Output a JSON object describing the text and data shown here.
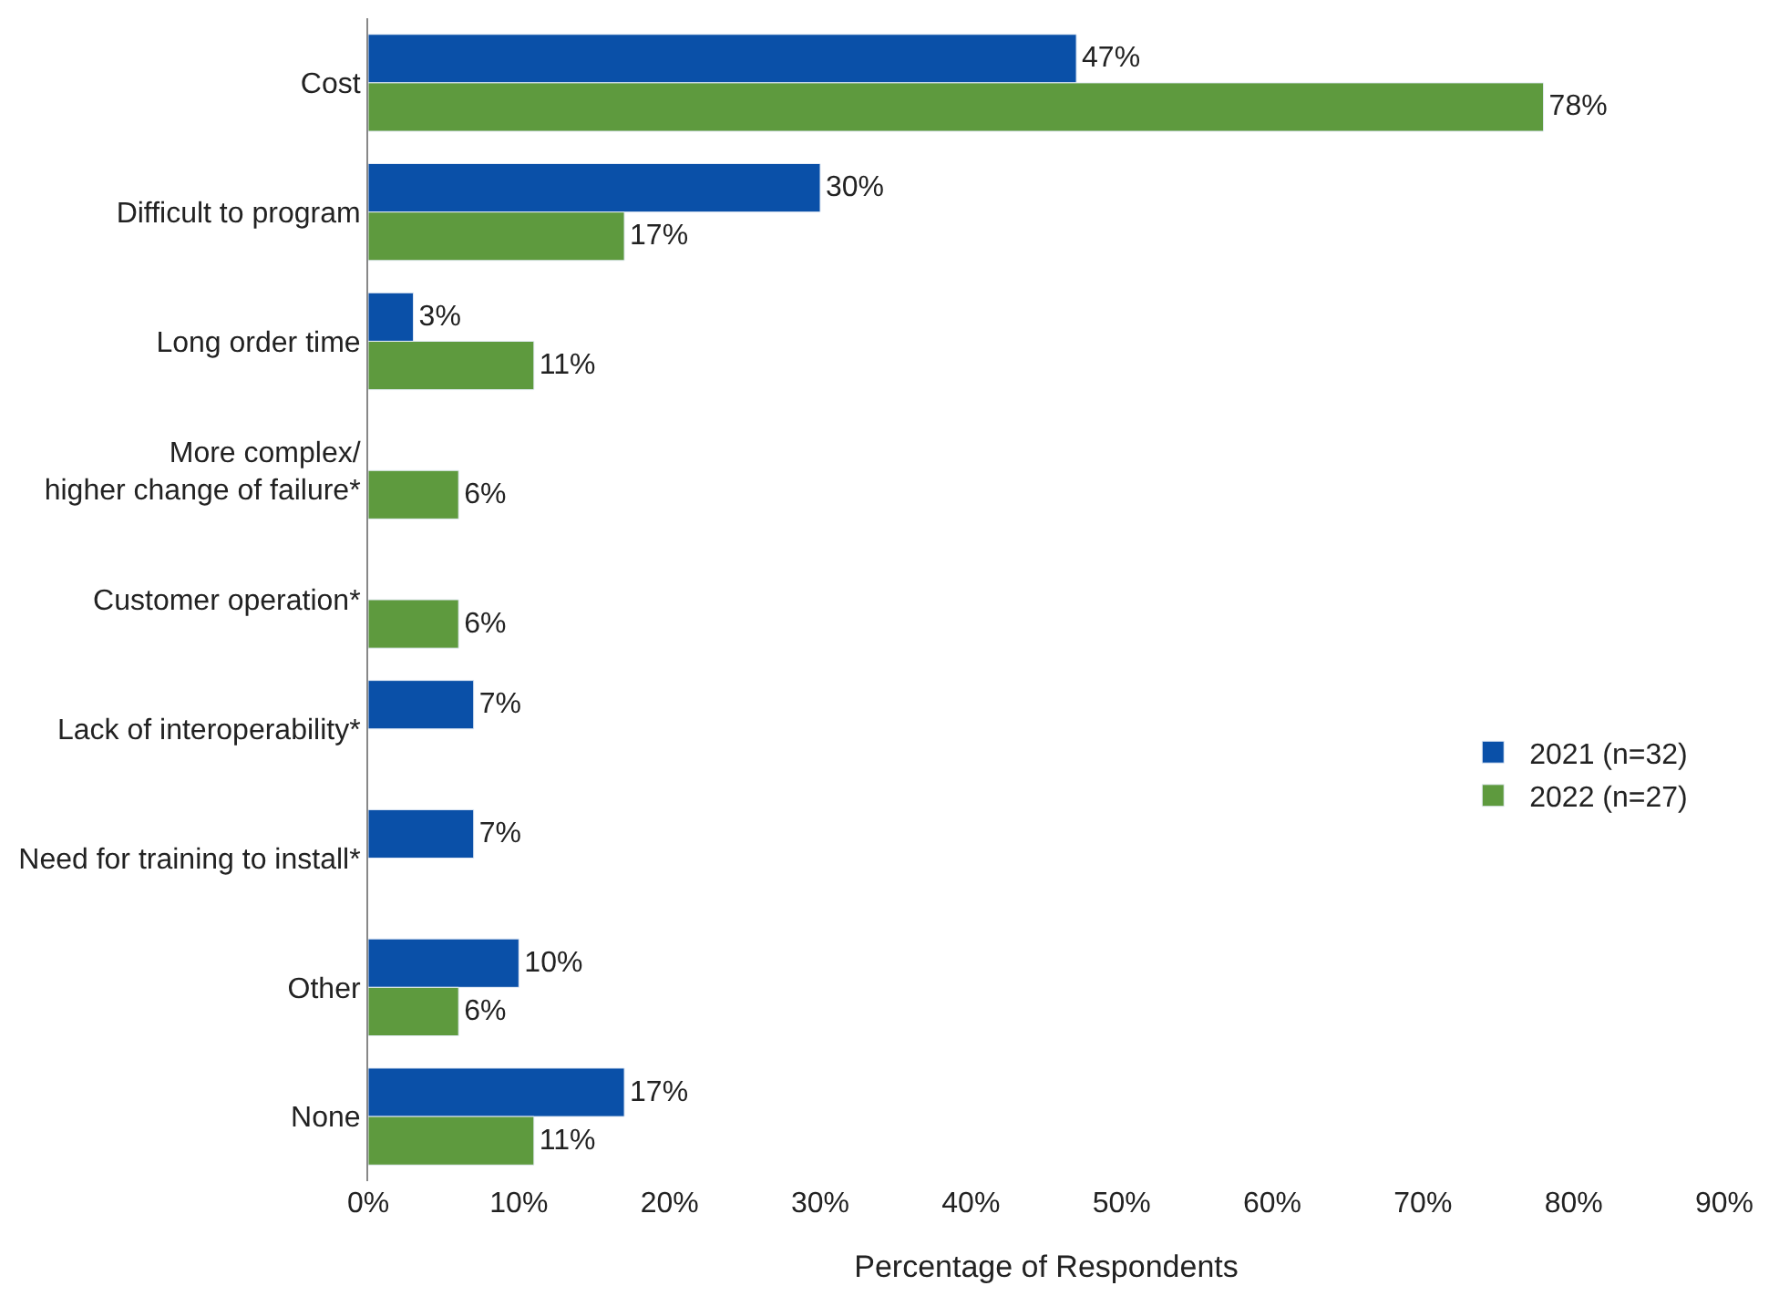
{
  "chart_data": {
    "type": "bar",
    "orientation": "horizontal",
    "xlabel": "Percentage of Respondents",
    "categories": [
      "Cost",
      "Difficult to program",
      "Long order time",
      "More complex/\nhigher change of failure*",
      "Customer operation*",
      "Lack of interoperability*",
      "Need for training to install*",
      "Other",
      "None"
    ],
    "series": [
      {
        "name": "2021 (n=32)",
        "color": "#0a50a8",
        "values": [
          47,
          30,
          3,
          null,
          null,
          7,
          7,
          10,
          17
        ],
        "value_labels": [
          "47%",
          "30%",
          "3%",
          null,
          null,
          "7%",
          "7%",
          "10%",
          "17%"
        ]
      },
      {
        "name": "2022 (n=27)",
        "color": "#5e9a3e",
        "values": [
          78,
          17,
          11,
          6,
          6,
          null,
          null,
          6,
          11
        ],
        "value_labels": [
          "78%",
          "17%",
          "11%",
          "6%",
          "6%",
          null,
          null,
          "6%",
          "11%"
        ]
      }
    ],
    "xlim": [
      0,
      90
    ],
    "xticks": [
      {
        "value": 0,
        "label": "0%"
      },
      {
        "value": 10,
        "label": "10%"
      },
      {
        "value": 20,
        "label": "20%"
      },
      {
        "value": 30,
        "label": "30%"
      },
      {
        "value": 40,
        "label": "40%"
      },
      {
        "value": 50,
        "label": "50%"
      },
      {
        "value": 60,
        "label": "60%"
      },
      {
        "value": 70,
        "label": "70%"
      },
      {
        "value": 80,
        "label": "80%"
      },
      {
        "value": 90,
        "label": "90%"
      }
    ],
    "legend": "right"
  }
}
